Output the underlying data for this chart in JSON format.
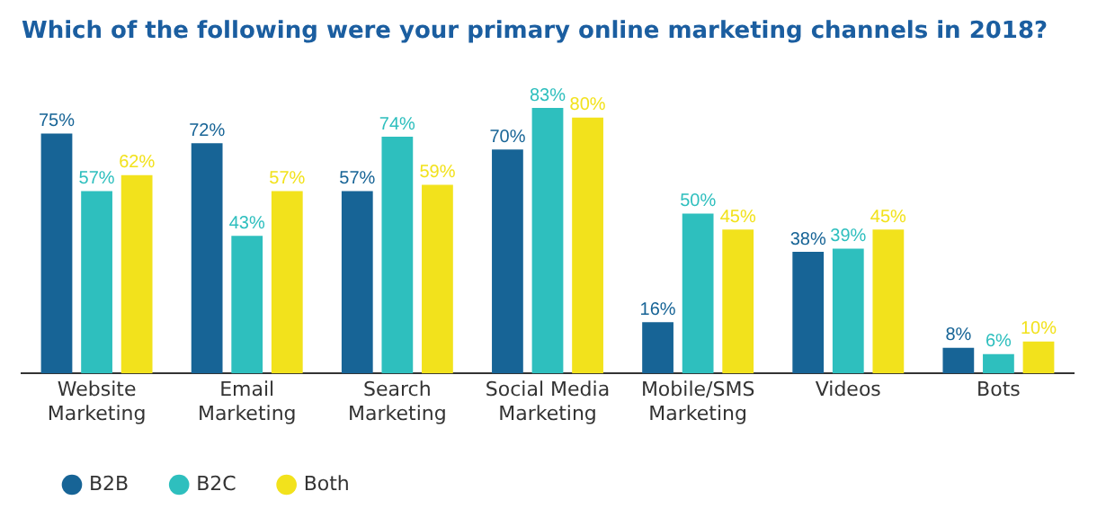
{
  "chart_data": {
    "type": "bar",
    "title": "Which of the following were your primary online marketing channels in 2018?",
    "categories": [
      "Website\nMarketing",
      "Email\nMarketing",
      "Search\nMarketing",
      "Social Media\nMarketing",
      "Mobile/SMS\nMarketing",
      "Videos",
      "Bots"
    ],
    "series": [
      {
        "name": "B2B",
        "color": "#176496",
        "values": [
          75,
          72,
          57,
          70,
          16,
          38,
          8
        ],
        "value_labels": [
          "75%",
          "72%",
          "57%",
          "70%",
          "16%",
          "38%",
          "8%"
        ]
      },
      {
        "name": "B2C",
        "color": "#2ebfbe",
        "values": [
          57,
          43,
          74,
          83,
          50,
          39,
          6
        ],
        "value_labels": [
          "57%",
          "43%",
          "74%",
          "83%",
          "50%",
          "39%",
          "6%"
        ]
      },
      {
        "name": "Both",
        "color": "#f2e21c",
        "values": [
          62,
          57,
          59,
          80,
          45,
          45,
          10
        ],
        "value_labels": [
          "62%",
          "57%",
          "59%",
          "80%",
          "45%",
          "45%",
          "10%"
        ]
      }
    ],
    "legend": "bottom left"
  }
}
